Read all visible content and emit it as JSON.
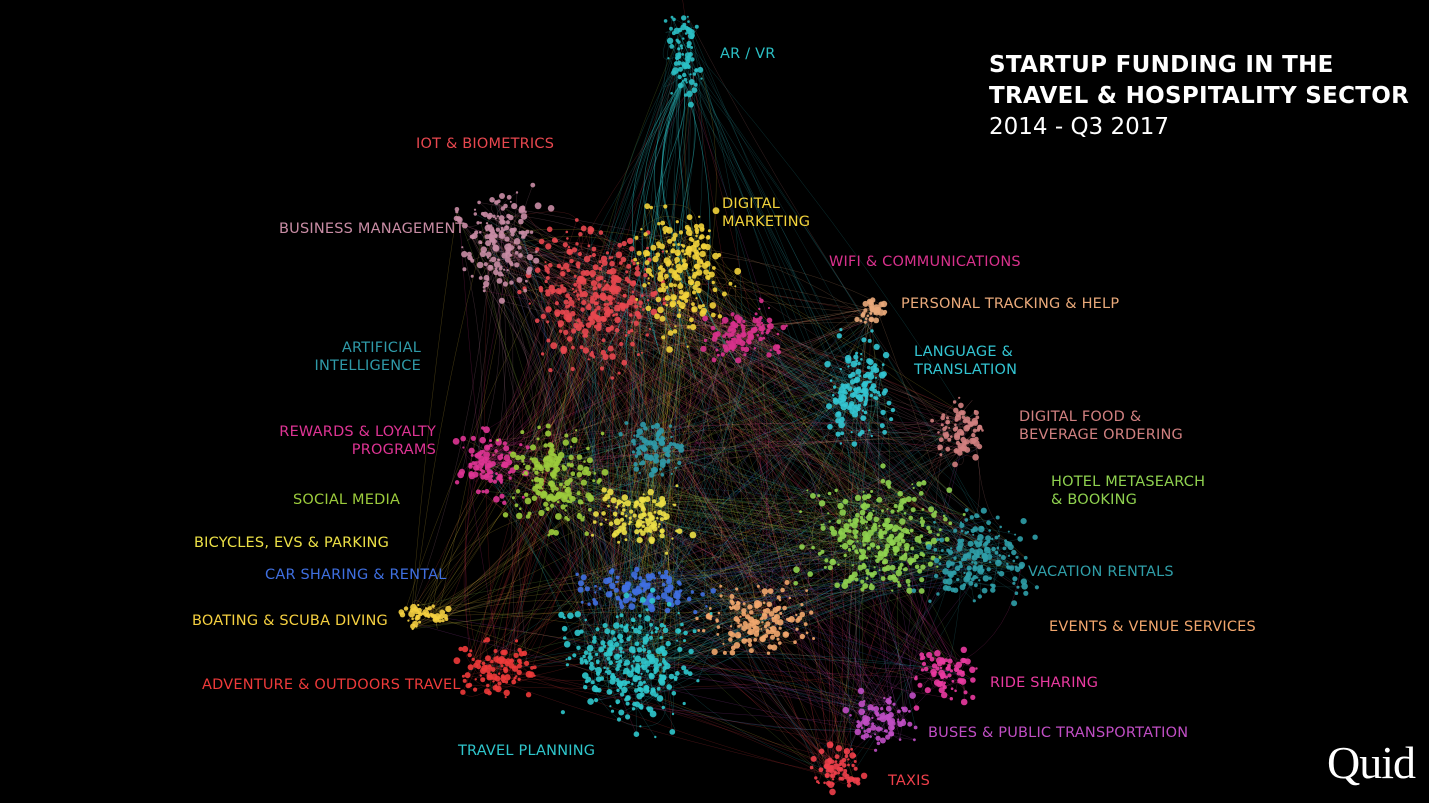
{
  "title": {
    "line1": "STARTUP FUNDING IN THE",
    "line2": "TRAVEL & HOSPITALITY SECTOR",
    "subtitle": "2014 - Q3 2017"
  },
  "logo": "Quid",
  "clusters": [
    {
      "id": "ar-vr",
      "lines": [
        "AR / VR"
      ],
      "color": "#2bbfc4"
    },
    {
      "id": "iot-biometrics",
      "lines": [
        "IOT & BIOMETRICS"
      ],
      "color": "#e8474f"
    },
    {
      "id": "business-management",
      "lines": [
        "BUSINESS MANAGEMENT"
      ],
      "color": "#c88ca4"
    },
    {
      "id": "digital-marketing",
      "lines": [
        "DIGITAL",
        "MARKETING"
      ],
      "color": "#f2d33b"
    },
    {
      "id": "wifi-communications",
      "lines": [
        "WIFI & COMMUNICATIONS"
      ],
      "color": "#d8318c"
    },
    {
      "id": "personal-tracking",
      "lines": [
        "PERSONAL TRACKING & HELP"
      ],
      "color": "#e9a97a"
    },
    {
      "id": "artificial-intelligence",
      "lines": [
        "ARTIFICIAL",
        "INTELLIGENCE"
      ],
      "color": "#2f9aa8"
    },
    {
      "id": "language-translation",
      "lines": [
        "LANGUAGE &",
        "TRANSLATION"
      ],
      "color": "#33c5d2"
    },
    {
      "id": "rewards-loyalty",
      "lines": [
        "REWARDS & LOYALTY",
        "PROGRAMS"
      ],
      "color": "#de3494"
    },
    {
      "id": "digital-food",
      "lines": [
        "DIGITAL FOOD &",
        "BEVERAGE ORDERING"
      ],
      "color": "#d08080"
    },
    {
      "id": "social-media",
      "lines": [
        "SOCIAL MEDIA"
      ],
      "color": "#9ccb3c"
    },
    {
      "id": "hotel-metasearch",
      "lines": [
        "HOTEL METASEARCH",
        "& BOOKING"
      ],
      "color": "#8fd14f"
    },
    {
      "id": "bicycles-evs",
      "lines": [
        "BICYCLES, EVS & PARKING"
      ],
      "color": "#ece046"
    },
    {
      "id": "car-sharing",
      "lines": [
        "CAR SHARING & RENTAL"
      ],
      "color": "#3f6fe0"
    },
    {
      "id": "vacation-rentals",
      "lines": [
        "VACATION RENTALS"
      ],
      "color": "#2f9ea8"
    },
    {
      "id": "boating-scuba",
      "lines": [
        "BOATING & SCUBA DIVING"
      ],
      "color": "#f5d040"
    },
    {
      "id": "events-venue",
      "lines": [
        "EVENTS & VENUE SERVICES"
      ],
      "color": "#f1a66d"
    },
    {
      "id": "adventure-outdoors",
      "lines": [
        "ADVENTURE & OUTDOORS TRAVEL"
      ],
      "color": "#ee3a3a"
    },
    {
      "id": "ride-sharing",
      "lines": [
        "RIDE SHARING"
      ],
      "color": "#e93aa0"
    },
    {
      "id": "buses-public-transportation",
      "lines": [
        "BUSES & PUBLIC TRANSPORTATION"
      ],
      "color": "#c04ec4"
    },
    {
      "id": "travel-planning",
      "lines": [
        "TRAVEL PLANNING"
      ],
      "color": "#2fc6cc"
    },
    {
      "id": "taxis",
      "lines": [
        "TAXIS"
      ],
      "color": "#ee3f4a"
    }
  ]
}
